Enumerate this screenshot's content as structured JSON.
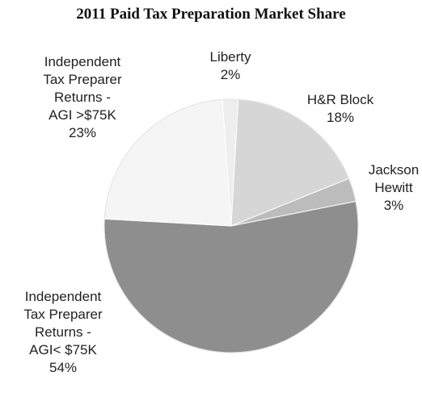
{
  "chart_data": {
    "type": "pie",
    "title": "2011 Paid Tax Preparation Market Share",
    "slices": [
      {
        "label_lines": [
          "Liberty",
          "2%"
        ],
        "value": 2,
        "color": "#eeeeee"
      },
      {
        "label_lines": [
          "H&R Block",
          "18%"
        ],
        "value": 18,
        "color": "#d6d6d6"
      },
      {
        "label_lines": [
          "Jackson",
          "Hewitt",
          "3%"
        ],
        "value": 3,
        "color": "#bcbcbc"
      },
      {
        "label_lines": [
          "Independent",
          "Tax Preparer",
          "Returns -",
          "AGI< $75K",
          "54%"
        ],
        "value": 54,
        "color": "#8e8e8e"
      },
      {
        "label_lines": [
          "Independent",
          "Tax Preparer",
          "Returns -",
          "AGI >$75K",
          "23%"
        ],
        "value": 23,
        "color": "#f5f5f5"
      }
    ]
  }
}
